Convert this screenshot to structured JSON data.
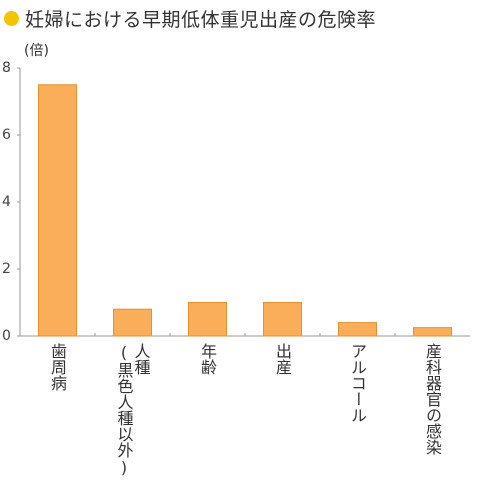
{
  "header": {
    "title": "妊婦における早期低体重児出産の危険率",
    "bullet_color": "#f5c400"
  },
  "chart_data": {
    "type": "bar",
    "title": "妊婦における早期低体重児出産の危険率",
    "unit_label": "(倍)",
    "categories": [
      "歯周病",
      "人種(黒色人種以外)",
      "年齢",
      "出産",
      "アルコール",
      "産科器官の感染"
    ],
    "category_lines": [
      [
        "歯周病"
      ],
      [
        "人種",
        "(黒色人種以外)"
      ],
      [
        "年齢"
      ],
      [
        "出産"
      ],
      [
        "アルコール"
      ],
      [
        "産科器官の感染"
      ]
    ],
    "values": [
      7.5,
      0.8,
      1.0,
      1.0,
      0.4,
      0.25
    ],
    "ylim": [
      0,
      8
    ],
    "yticks": [
      0,
      2,
      4,
      6,
      8
    ],
    "grid": false,
    "bar_color": "#fbae5a",
    "bar_edge_color": "#e8902e"
  }
}
